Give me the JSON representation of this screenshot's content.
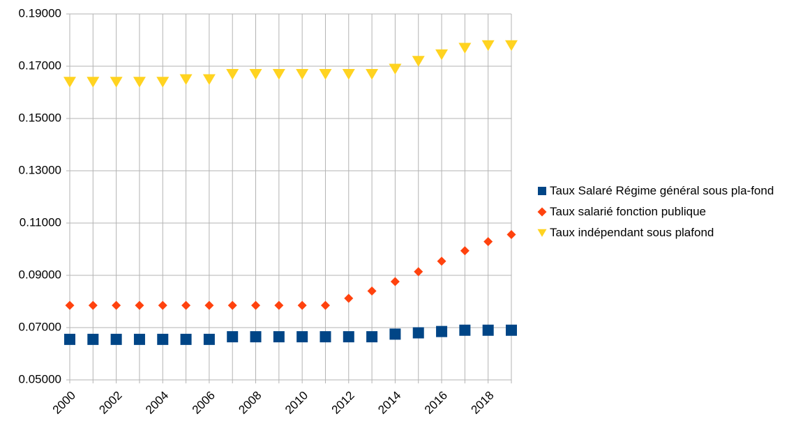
{
  "chart_data": {
    "type": "scatter",
    "categories": [
      "2000",
      null,
      "2002",
      null,
      "2004",
      null,
      "2006",
      null,
      "2008",
      null,
      "2010",
      null,
      "2012",
      null,
      "2014",
      null,
      "2016",
      null,
      "2018",
      null
    ],
    "series": [
      {
        "name": "Taux Salaré Régime général sous pla-fond",
        "color": "#004586",
        "marker": "square",
        "values": [
          0.0655,
          0.0655,
          0.0655,
          0.0655,
          0.0655,
          0.0655,
          0.0655,
          0.0665,
          0.0665,
          0.0665,
          0.0665,
          0.0665,
          0.0665,
          0.0665,
          0.0675,
          0.068,
          0.0685,
          0.069,
          0.069,
          0.069
        ]
      },
      {
        "name": "Taux salarié fonction publique",
        "color": "#ff420e",
        "marker": "diamond",
        "values": [
          0.0785,
          0.0785,
          0.0785,
          0.0785,
          0.0785,
          0.0785,
          0.0785,
          0.0785,
          0.0785,
          0.0785,
          0.0785,
          0.0785,
          0.0812,
          0.084,
          0.0876,
          0.0914,
          0.0954,
          0.0994,
          0.1029,
          0.1056
        ]
      },
      {
        "name": "Taux indépendant sous plafond",
        "color": "#ffd320",
        "marker": "triangle-down",
        "values": [
          0.164,
          0.164,
          0.164,
          0.164,
          0.164,
          0.165,
          0.165,
          0.167,
          0.167,
          0.167,
          0.167,
          0.167,
          0.167,
          0.167,
          0.169,
          0.172,
          0.1745,
          0.177,
          0.178,
          0.178
        ]
      }
    ],
    "ylim": [
      0.05,
      0.19
    ],
    "yticks": [
      {
        "value": 0.05,
        "label": "0.05000"
      },
      {
        "value": 0.07,
        "label": "0.07000"
      },
      {
        "value": 0.09,
        "label": "0.09000"
      },
      {
        "value": 0.11,
        "label": "0.11000"
      },
      {
        "value": 0.13,
        "label": "0.13000"
      },
      {
        "value": 0.15,
        "label": "0.15000"
      },
      {
        "value": 0.17,
        "label": "0.17000"
      },
      {
        "value": 0.19,
        "label": "0.19000"
      }
    ],
    "grid": true,
    "legend": "right"
  }
}
